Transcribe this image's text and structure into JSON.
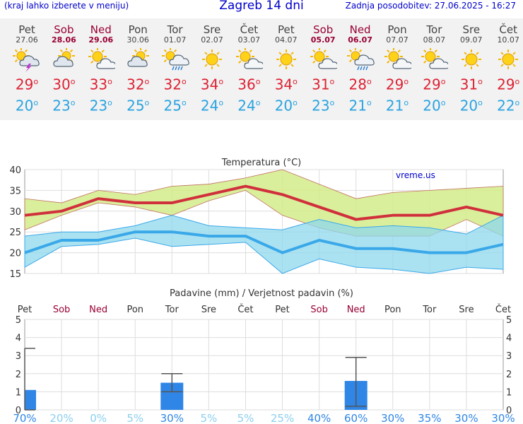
{
  "header": {
    "left_note": "(kraj lahko izberete v meniju)",
    "title": "Zagreb 14 dni",
    "updated": "Zadnja posodobitev: 27.06.2025 - 16:27"
  },
  "days": [
    {
      "name": "Pet",
      "date": "27.06",
      "weekend": false,
      "icon": "thunderstorm-sun-icon",
      "max": "29",
      "min": "20"
    },
    {
      "name": "Sob",
      "date": "28.06",
      "weekend": true,
      "icon": "partly-cloudy-icon",
      "max": "30",
      "min": "23"
    },
    {
      "name": "Ned",
      "date": "29.06",
      "weekend": true,
      "icon": "sun-cloud-icon",
      "max": "33",
      "min": "23"
    },
    {
      "name": "Pon",
      "date": "30.06",
      "weekend": false,
      "icon": "partly-cloudy-icon",
      "max": "32",
      "min": "25"
    },
    {
      "name": "Tor",
      "date": "01.07",
      "weekend": false,
      "icon": "sun-rain-cloud-icon",
      "max": "32",
      "min": "25"
    },
    {
      "name": "Sre",
      "date": "02.07",
      "weekend": false,
      "icon": "sun-icon",
      "max": "34",
      "min": "24"
    },
    {
      "name": "Čet",
      "date": "03.07",
      "weekend": false,
      "icon": "sun-cloud-icon",
      "max": "36",
      "min": "24"
    },
    {
      "name": "Pet",
      "date": "04.07",
      "weekend": false,
      "icon": "sun-icon",
      "max": "34",
      "min": "20"
    },
    {
      "name": "Sob",
      "date": "05.07",
      "weekend": true,
      "icon": "sun-cloud-icon",
      "max": "31",
      "min": "23"
    },
    {
      "name": "Ned",
      "date": "06.07",
      "weekend": true,
      "icon": "sun-rain-cloud-icon",
      "max": "28",
      "min": "21"
    },
    {
      "name": "Pon",
      "date": "07.07",
      "weekend": false,
      "icon": "sun-cloud-icon",
      "max": "29",
      "min": "21"
    },
    {
      "name": "Tor",
      "date": "08.07",
      "weekend": false,
      "icon": "sun-cloud-icon",
      "max": "29",
      "min": "20"
    },
    {
      "name": "Sre",
      "date": "09.07",
      "weekend": false,
      "icon": "sun-icon",
      "max": "31",
      "min": "20"
    },
    {
      "name": "Čet",
      "date": "10.07",
      "weekend": false,
      "icon": "sun-icon",
      "max": "29",
      "min": "22"
    }
  ],
  "colors": {
    "max_line": "#d0303c",
    "max_band": "#d4ec8a",
    "min_line": "#3aa8e8",
    "min_band": "#8fd8ee",
    "bar": "#2f86e6",
    "weekend": "#990033",
    "weekday": "#444444",
    "pct_strong": "#2f86e6",
    "pct_light": "#8ccfee"
  },
  "chart_data": [
    {
      "type": "line",
      "title": "Temperatura",
      "title_unit": "(°C)",
      "watermark": "vreme.us",
      "ylim": [
        15,
        40
      ],
      "yticks": [
        15,
        20,
        25,
        30,
        35,
        40
      ],
      "grid": true,
      "series": [
        {
          "values": [
            29,
            30,
            33,
            32,
            32,
            34,
            36,
            34,
            31,
            28,
            29,
            29,
            31,
            29
          ]
        },
        {
          "values": [
            33,
            32,
            35,
            34,
            36,
            36.5,
            38,
            40,
            36.5,
            33,
            34.5,
            35,
            35.5,
            36
          ]
        },
        {
          "values": [
            25.5,
            29,
            32,
            31,
            29,
            32.5,
            35,
            29,
            26,
            24,
            24,
            24,
            28,
            24
          ]
        },
        {
          "values": [
            20,
            23,
            23,
            25,
            25,
            24,
            24,
            20,
            23,
            21,
            21,
            20,
            20,
            22
          ]
        },
        {
          "values": [
            24,
            25,
            25,
            26.5,
            29,
            26.5,
            26,
            25.5,
            28,
            26,
            26.5,
            26,
            24.5,
            29
          ]
        },
        {
          "values": [
            16.5,
            21.5,
            22,
            23.5,
            21.5,
            22,
            22.5,
            15,
            18.5,
            16.5,
            16,
            15,
            16.5,
            16
          ]
        }
      ]
    },
    {
      "type": "bar",
      "title": "Padavine (mm) / Verjetnost padavin (%)",
      "ylim": [
        0,
        5
      ],
      "yticks": [
        0,
        1,
        2,
        3,
        4,
        5
      ],
      "categories": [
        "Pet",
        "Sob",
        "Ned",
        "Pon",
        "Tor",
        "Sre",
        "Čet",
        "Pet",
        "Sob",
        "Ned",
        "Pon",
        "Tor",
        "Sre",
        "Čet"
      ],
      "values": [
        1.1,
        0,
        0,
        0,
        1.5,
        0,
        0,
        0,
        0,
        1.6,
        0,
        0,
        0,
        0
      ],
      "error_high": [
        3.4,
        0,
        0,
        0,
        2,
        0,
        0,
        0,
        0,
        2.9,
        0,
        0,
        0,
        0
      ],
      "error_low": [
        0,
        0,
        0,
        0,
        1,
        0,
        0,
        0,
        0,
        0.2,
        0,
        0,
        0,
        0
      ],
      "probability": [
        "70%",
        "20%",
        "0%",
        "5%",
        "30%",
        "5%",
        "5%",
        "25%",
        "40%",
        "60%",
        "30%",
        "35%",
        "30%",
        "30%"
      ]
    }
  ]
}
